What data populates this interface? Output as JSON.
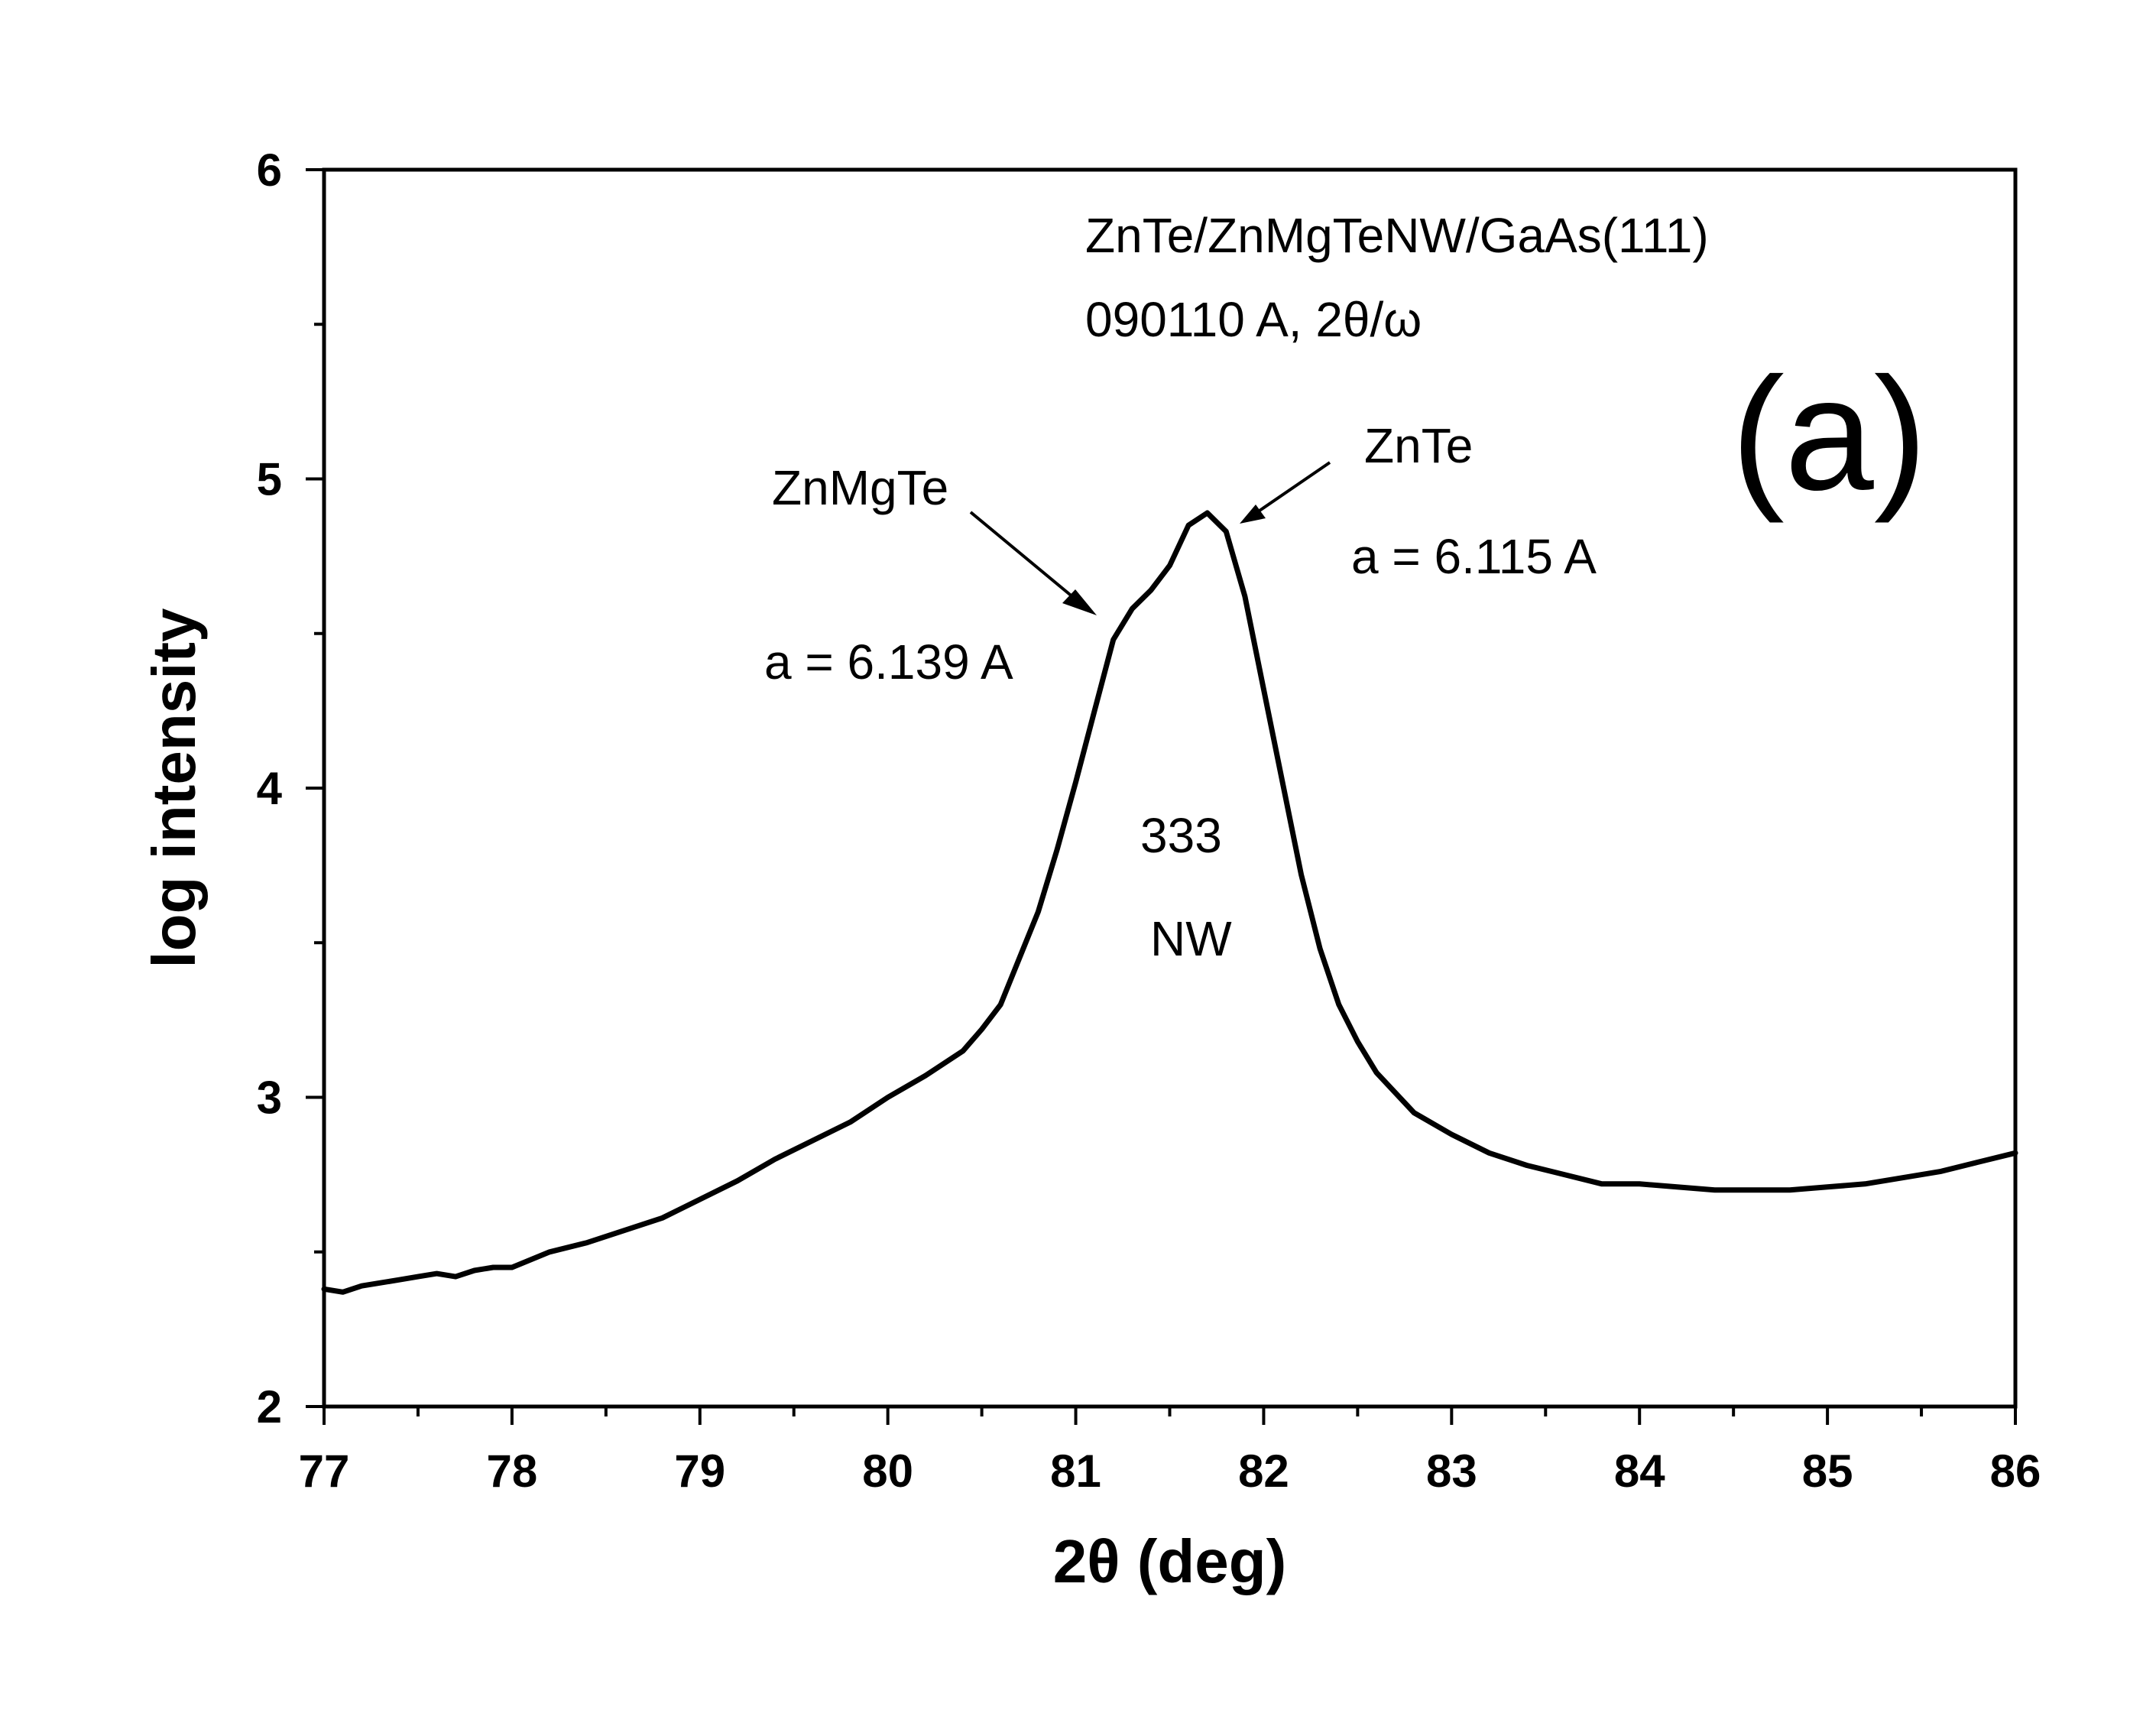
{
  "chart_data": {
    "type": "line",
    "title": "",
    "xlabel": "2θ (deg)",
    "ylabel": "log intensity",
    "xlim": [
      77,
      86
    ],
    "ylim": [
      2,
      6
    ],
    "x_ticks": [
      77,
      78,
      79,
      80,
      81,
      82,
      83,
      84,
      85,
      86
    ],
    "y_ticks": [
      2,
      3,
      4,
      5,
      6
    ],
    "grid": false,
    "legend": "none",
    "series_color": "#000000",
    "annotations": {
      "sample": "ZnTe/ZnMgTeNW/GaAs(111)",
      "scan": "090110 A, 2θ/ω",
      "panel": "(a)",
      "znmgte_label": "ZnMgTe",
      "znmgte_lattice": "a = 6.139 A",
      "znte_label": "ZnTe",
      "znte_lattice": "a = 6.115 A",
      "reflection": "333",
      "nw_label": "NW"
    },
    "series": [
      {
        "x": [
          77.0,
          77.1,
          77.2,
          77.3,
          77.4,
          77.5,
          77.6,
          77.7,
          77.8,
          77.9,
          78.0,
          78.2,
          78.4,
          78.6,
          78.8,
          79.0,
          79.2,
          79.4,
          79.6,
          79.8,
          80.0,
          80.2,
          80.4,
          80.5,
          80.6,
          80.7,
          80.8,
          80.9,
          81.0,
          81.1,
          81.2,
          81.3,
          81.4,
          81.5,
          81.6,
          81.7,
          81.8,
          81.9,
          82.0,
          82.1,
          82.2,
          82.3,
          82.4,
          82.5,
          82.6,
          82.8,
          83.0,
          83.2,
          83.4,
          83.6,
          83.8,
          84.0,
          84.2,
          84.4,
          84.6,
          84.8,
          85.0,
          85.2,
          85.4,
          85.6,
          85.8,
          86.0
        ],
        "y": [
          2.38,
          2.37,
          2.39,
          2.4,
          2.41,
          2.42,
          2.43,
          2.42,
          2.44,
          2.45,
          2.45,
          2.5,
          2.53,
          2.57,
          2.61,
          2.67,
          2.73,
          2.8,
          2.86,
          2.92,
          3.0,
          3.07,
          3.15,
          3.22,
          3.3,
          3.45,
          3.6,
          3.8,
          4.02,
          4.25,
          4.48,
          4.58,
          4.64,
          4.72,
          4.85,
          4.89,
          4.83,
          4.62,
          4.32,
          4.02,
          3.72,
          3.48,
          3.3,
          3.18,
          3.08,
          2.95,
          2.88,
          2.82,
          2.78,
          2.75,
          2.72,
          2.72,
          2.71,
          2.7,
          2.7,
          2.7,
          2.71,
          2.72,
          2.74,
          2.76,
          2.79,
          2.82
        ]
      }
    ]
  }
}
